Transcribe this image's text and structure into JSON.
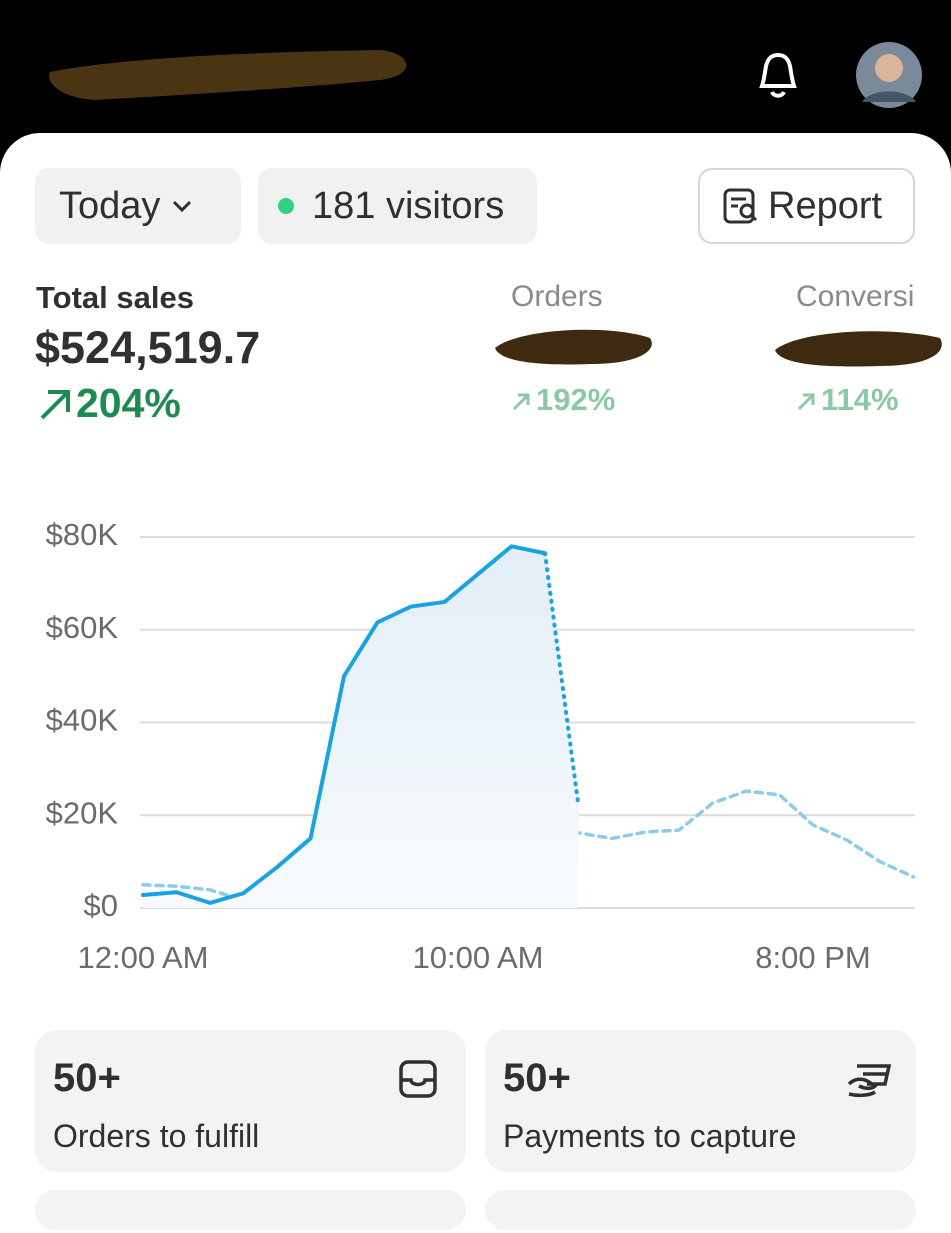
{
  "filters": {
    "period": "Today",
    "visitors": "181 visitors",
    "report": "Report"
  },
  "metrics": [
    {
      "label": "Total sales",
      "value": "$524,519.7",
      "change": "204%"
    },
    {
      "label": "Orders",
      "change": "192%"
    },
    {
      "label": "Conversi",
      "change": "114%"
    }
  ],
  "chart_data": {
    "type": "line",
    "categories": [
      "12:00 AM",
      null,
      null,
      null,
      null,
      null,
      null,
      null,
      null,
      null,
      "10:00 AM",
      null,
      null,
      null,
      null,
      null,
      null,
      null,
      null,
      null,
      "8:00 PM",
      null,
      null,
      null
    ],
    "series": [
      {
        "color": "#1aa3e0",
        "style": "solid",
        "last_segment": "dotted",
        "area": true,
        "values": [
          2800,
          3400,
          1100,
          3200,
          8800,
          15000,
          50000,
          61600,
          65000,
          66000,
          72000,
          78000,
          76500,
          22000,
          null,
          null,
          null,
          null,
          null,
          null,
          null,
          null,
          null,
          null
        ]
      },
      {
        "color": "#8ccbea",
        "style": "dashed",
        "values": [
          5000,
          4700,
          3900,
          1700,
          2200,
          10000,
          16400,
          16200,
          20700,
          26000,
          21500,
          20000,
          13400,
          16200,
          15000,
          16400,
          16800,
          22600,
          25200,
          24400,
          17900,
          14700,
          10000,
          6700
        ]
      }
    ],
    "ylim": [
      0,
      80000
    ],
    "yticks": [
      {
        "value": 0,
        "label": "$0"
      },
      {
        "value": 20000,
        "label": "$20K"
      },
      {
        "value": 40000,
        "label": "$40K"
      },
      {
        "value": 60000,
        "label": "$60K"
      },
      {
        "value": 80000,
        "label": "$80K"
      }
    ],
    "grid": true
  },
  "cards": [
    {
      "value": "50+",
      "label": "Orders to fulfill"
    },
    {
      "value": "50+",
      "label": "Payments to capture"
    }
  ]
}
